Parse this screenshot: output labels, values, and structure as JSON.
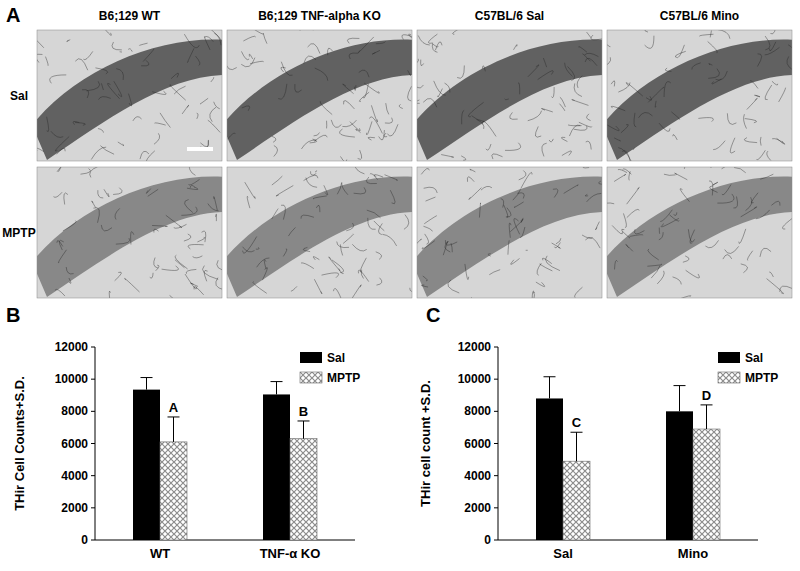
{
  "panel_a": {
    "label": "A",
    "columns": [
      "B6;129 WT",
      "B6;129 TNF-alpha KO",
      "C57BL/6 Sal",
      "C57BL/6 Mino"
    ],
    "rows": [
      "Sal",
      "MPTP"
    ]
  },
  "chart_data": [
    {
      "type": "bar",
      "title": "B",
      "ylabel": "THir Cell Counts+S.D.",
      "categories": [
        "WT",
        "TNF-α  KO"
      ],
      "series": [
        {
          "name": "Sal",
          "color": "#000000",
          "values": [
            9350,
            9050
          ],
          "errors": [
            750,
            800
          ]
        },
        {
          "name": "MPTP",
          "color": "#8c8c8c",
          "values": [
            6100,
            6300
          ],
          "errors": [
            1550,
            1100
          ],
          "annotations": [
            "A",
            "B"
          ]
        }
      ],
      "ylim": [
        0,
        12000
      ],
      "yticks": [
        0,
        2000,
        4000,
        6000,
        8000,
        10000,
        12000
      ],
      "grid": false,
      "legend": "upper right"
    },
    {
      "type": "bar",
      "title": "C",
      "ylabel": "THir cell count +S.D.",
      "categories": [
        "Sal",
        "Mino"
      ],
      "series": [
        {
          "name": "Sal",
          "color": "#000000",
          "values": [
            8800,
            8000
          ],
          "errors": [
            1350,
            1600
          ]
        },
        {
          "name": "MPTP",
          "color": "#8c8c8c",
          "values": [
            4900,
            6900
          ],
          "errors": [
            1800,
            1500
          ],
          "annotations": [
            "C",
            "D"
          ]
        }
      ],
      "ylim": [
        0,
        12000
      ],
      "yticks": [
        0,
        2000,
        4000,
        6000,
        8000,
        10000,
        12000
      ],
      "grid": false,
      "legend": "upper right"
    }
  ]
}
